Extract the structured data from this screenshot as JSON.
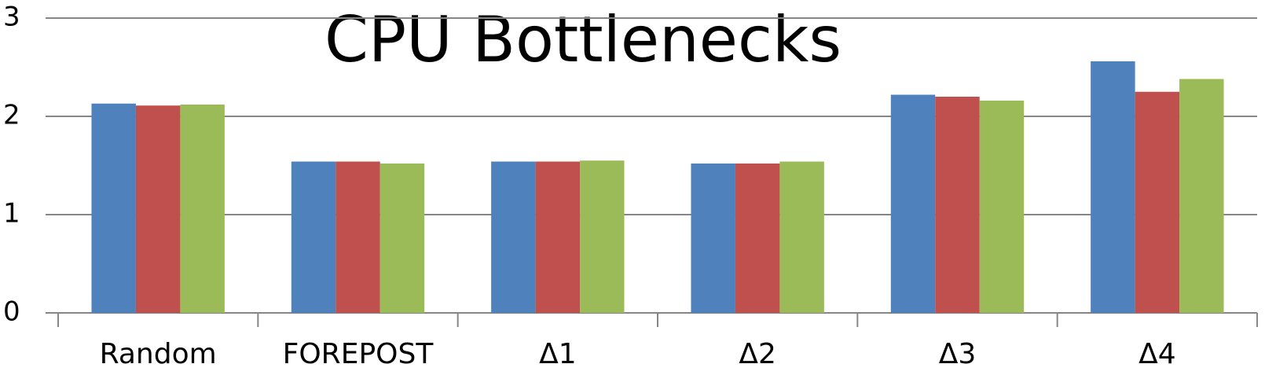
{
  "chart_data": {
    "type": "bar",
    "title": "CPU Bottlenecks",
    "categories": [
      "Random",
      "FOREPOST",
      "Δ1",
      "Δ2",
      "Δ3",
      "Δ4"
    ],
    "series": [
      {
        "color": "#4f81bd",
        "values": [
          2.13,
          1.54,
          1.54,
          1.52,
          2.22,
          2.56
        ]
      },
      {
        "color": "#c0504d",
        "values": [
          2.11,
          1.54,
          1.54,
          1.52,
          2.2,
          2.25
        ]
      },
      {
        "color": "#9bbb59",
        "values": [
          2.12,
          1.52,
          1.55,
          1.54,
          2.16,
          2.38
        ]
      }
    ],
    "ylim": [
      0,
      3
    ],
    "yticks": [
      0,
      1,
      2,
      3
    ],
    "grid": true
  }
}
